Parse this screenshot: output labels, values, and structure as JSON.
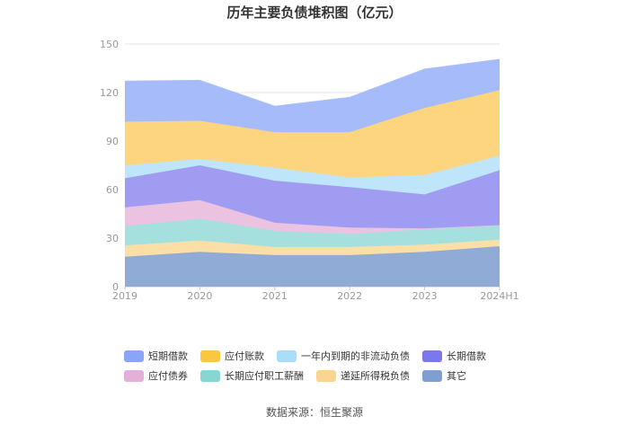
{
  "chart_data": {
    "type": "area",
    "title": "历年主要负债堆积图（亿元）",
    "stacked": true,
    "categories": [
      "2019",
      "2020",
      "2021",
      "2022",
      "2023",
      "2024H1"
    ],
    "ylim": [
      0,
      150
    ],
    "yticks": [
      "0",
      "30",
      "60",
      "90",
      "120",
      "150"
    ],
    "grid": true,
    "legend_position": "bottom",
    "series": [
      {
        "name": "其它",
        "color": "#8fabd6",
        "values": [
          18.5,
          21.5,
          19.5,
          19.5,
          21.5,
          25
        ]
      },
      {
        "name": "递延所得税负债",
        "color": "#fbdfa6",
        "values": [
          7,
          7,
          5,
          5,
          4.5,
          4
        ]
      },
      {
        "name": "长期应付职工薪酬",
        "color": "#a5e0de",
        "values": [
          12,
          13.5,
          10,
          8,
          9.5,
          9
        ]
      },
      {
        "name": "应付债券",
        "color": "#ebc3e0",
        "values": [
          11.5,
          11.5,
          5,
          4,
          0.5,
          0
        ]
      },
      {
        "name": "长期借款",
        "color": "#9f9cf2",
        "values": [
          18,
          21.5,
          26,
          25,
          21,
          34
        ]
      },
      {
        "name": "一年内到期的非流动负债",
        "color": "#bfe5fb",
        "values": [
          8,
          4,
          8,
          6,
          12,
          9
        ]
      },
      {
        "name": "应付账款",
        "color": "#fcd57e",
        "values": [
          27,
          23.5,
          22,
          28,
          41.5,
          40.5
        ]
      },
      {
        "name": "短期借款",
        "color": "#a5bbfa",
        "values": [
          25,
          25,
          16,
          21.5,
          24,
          19
        ]
      }
    ]
  },
  "legend_order": [
    "短期借款",
    "应付账款",
    "一年内到期的非流动负债",
    "长期借款",
    "应付债券",
    "长期应付职工薪酬",
    "递延所得税负债",
    "其它"
  ],
  "legend_colors": {
    "短期借款": "#8aa5f7",
    "应付账款": "#fbc640",
    "一年内到期的非流动负债": "#a9ddfa",
    "长期借款": "#7b78ee",
    "应付债券": "#e3b1d7",
    "长期应付职工薪酬": "#86d7d4",
    "递延所得税负债": "#fad592",
    "其它": "#7f9fd3"
  },
  "source": "数据来源：恒生聚源"
}
